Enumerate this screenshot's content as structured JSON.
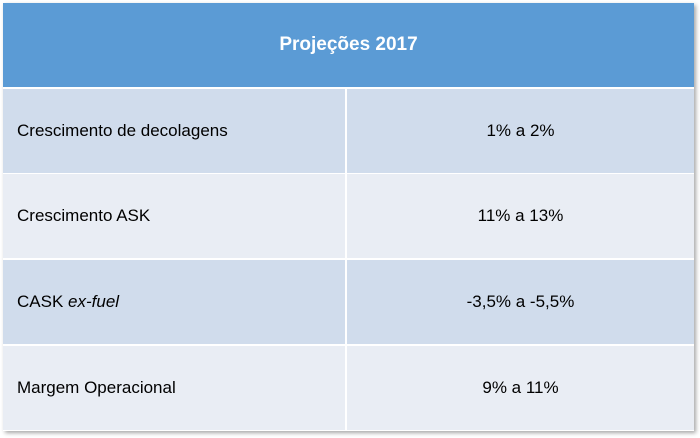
{
  "table": {
    "header": "Projeções 2017",
    "rows": [
      {
        "label": "Crescimento de decolagens",
        "value": "1% a 2%"
      },
      {
        "label": "Crescimento ASK",
        "value": "11% a 13%"
      },
      {
        "label_prefix": "CASK ",
        "label_italic": "ex-fuel",
        "value": "-3,5% a -5,5%"
      },
      {
        "label": "Margem Operacional",
        "value": "9% a 11%"
      }
    ]
  },
  "colors": {
    "header_bg": "#5b9bd5",
    "row_dark": "#d0dcec",
    "row_light": "#e9edf4"
  }
}
